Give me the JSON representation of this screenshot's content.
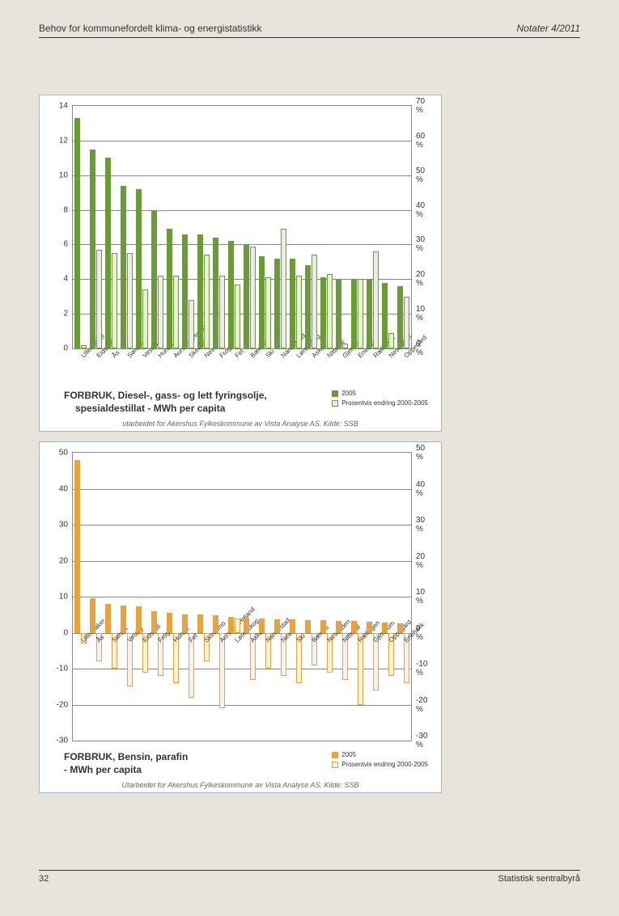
{
  "header": {
    "left": "Behov for kommunefordelt klima- og energistatistikk",
    "right": "Notater 4/2011"
  },
  "footer": {
    "page": "32",
    "org": "Statistisk sentralbyrå"
  },
  "chart1": {
    "type": "bar",
    "title_l1": "FORBRUK, Diesel-, gass- og lett fyringsolje,",
    "title_l2": "spesialdestillat - MWh per capita",
    "source": "utarbeidet for Akershus Fylkeskommune av Vista Analyse AS. Kilde: SSB",
    "y_left": {
      "min": 0,
      "max": 14,
      "step": 2
    },
    "y_right": {
      "min": 0,
      "max": 70,
      "step": 10,
      "suffix": " %"
    },
    "color1": "#6b9b37",
    "color2": "#e8f0dc",
    "color2_border": "#6b9b37",
    "background_color": "#ffffff",
    "border_color": "#9cb8d4",
    "legend": {
      "label1": "2005",
      "label2": "Prosentvis endring 2000-2005"
    },
    "categories": [
      "Ullensaker",
      "Eidsvoll",
      "Ås",
      "Sørum",
      "Vestby",
      "Hurdal",
      "Aurskog-Høland",
      "Skedsmo",
      "Nes",
      "Frogn",
      "Fet",
      "Bærum",
      "Ski",
      "Nannestad",
      "Lørenskog",
      "Asker",
      "Nittedal",
      "Gjerdrum",
      "Enebakk",
      "Rælingen",
      "Nesodden",
      "Oppegård"
    ],
    "values1": [
      13.3,
      11.5,
      11.0,
      9.4,
      9.2,
      8.0,
      6.9,
      6.6,
      6.6,
      6.4,
      6.2,
      6.0,
      5.3,
      5.2,
      5.2,
      4.8,
      4.1,
      4.0,
      4.0,
      4.0,
      3.8,
      3.6
    ],
    "values2": [
      0.2,
      5.7,
      5.5,
      5.5,
      3.4,
      4.2,
      4.2,
      2.8,
      5.4,
      4.2,
      3.7,
      5.9,
      4.1,
      6.9,
      4.2,
      5.4,
      4.3,
      0.3,
      4.0,
      5.6,
      0.9,
      3.0
    ]
  },
  "chart2": {
    "type": "bar",
    "title_l1": "FORBRUK, Bensin, parafin",
    "title_l2": "- MWh per capita",
    "source": "Utarbeidet for Akershus Fylkeskommune av Vista Analyse AS. Kilde: SSB",
    "y_left": {
      "min": -30,
      "max": 50,
      "step": 10
    },
    "y_right": {
      "min": -30,
      "max": 50,
      "step": 10,
      "suffix": " %"
    },
    "color1": "#e8a33d",
    "color2": "#fdf2e0",
    "color2_border": "#e8a33d",
    "background_color": "#ffffff",
    "border_color": "#9cb8d4",
    "legend": {
      "label1": "2005",
      "label2": "Prosentvis endring 2000-2005"
    },
    "categories": [
      "Ullensaker",
      "Ås",
      "Sørum",
      "Vestby",
      "Eidsvoll",
      "Frogn",
      "Hurdal",
      "Fet",
      "Skedsmo",
      "Aurskog-Høland",
      "Lørenskog",
      "Asker",
      "Nannestad",
      "Nes",
      "Ski",
      "Bærum",
      "Nesodden",
      "Nittedal",
      "Rælingen",
      "Gjerdrum",
      "Oppegård",
      "Enebakk"
    ],
    "values1": [
      48,
      9.5,
      8.0,
      7.5,
      7.3,
      6.0,
      5.5,
      5.2,
      5.0,
      4.8,
      4.5,
      4.2,
      4.0,
      3.8,
      3.7,
      3.6,
      3.5,
      3.3,
      3.2,
      3.0,
      2.8,
      2.6
    ],
    "values2": [
      -3,
      -8,
      -10,
      -15,
      -11,
      -12,
      -14,
      -18,
      -8,
      -21,
      4,
      -13,
      -10,
      -12,
      -14,
      -9,
      -11,
      -13,
      -20,
      -16,
      -12,
      -14
    ]
  }
}
